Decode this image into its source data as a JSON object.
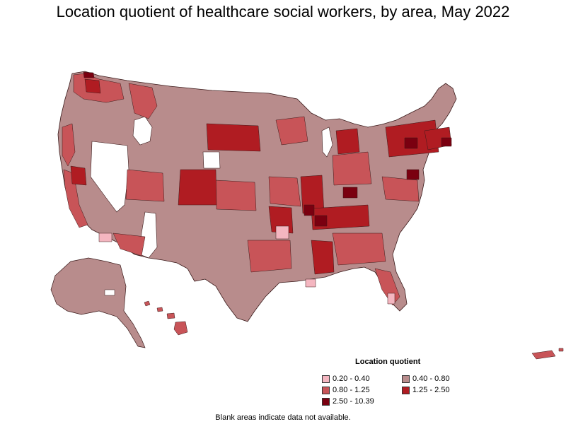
{
  "title": "Location quotient of healthcare social workers, by area, May 2022",
  "legend": {
    "title": "Location quotient",
    "items": [
      {
        "label": "0.20 - 0.40",
        "color": "#f4b6c0"
      },
      {
        "label": "0.40 - 0.80",
        "color": "#b88c8c"
      },
      {
        "label": "0.80 - 1.25",
        "color": "#c85458"
      },
      {
        "label": "1.25 - 2.50",
        "color": "#b01c22"
      },
      {
        "label": "2.50 - 10.39",
        "color": "#7a0010"
      }
    ]
  },
  "footnote": "Blank areas indicate data not available.",
  "colors": {
    "no_data": "#ffffff",
    "border": "#3a1a1a"
  }
}
